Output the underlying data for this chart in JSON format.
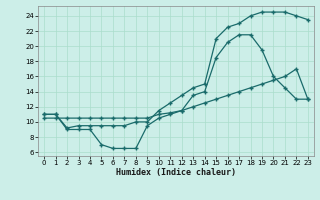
{
  "xlabel": "Humidex (Indice chaleur)",
  "bg_color": "#cceee8",
  "grid_color": "#aaddcc",
  "line_color": "#1a6b6b",
  "x_ticks": [
    0,
    1,
    2,
    3,
    4,
    5,
    6,
    7,
    8,
    9,
    10,
    11,
    12,
    13,
    14,
    15,
    16,
    17,
    18,
    19,
    20,
    21,
    22,
    23
  ],
  "y_ticks": [
    6,
    8,
    10,
    12,
    14,
    16,
    18,
    20,
    22,
    24
  ],
  "xlim": [
    -0.5,
    23.5
  ],
  "ylim": [
    5.5,
    25.3
  ],
  "line1_x": [
    0,
    1,
    2,
    3,
    4,
    5,
    6,
    7,
    8,
    9,
    10,
    11,
    12,
    13,
    14,
    15,
    16,
    17,
    18,
    19,
    20,
    21,
    22,
    23
  ],
  "line1_y": [
    11,
    11,
    9,
    9,
    9,
    7,
    6.5,
    6.5,
    6.5,
    9.5,
    10.5,
    11,
    11.5,
    13.5,
    14,
    18.5,
    20.5,
    21.5,
    21.5,
    19.5,
    16,
    14.5,
    13,
    13
  ],
  "line2_x": [
    0,
    1,
    2,
    3,
    4,
    5,
    6,
    7,
    8,
    9,
    10,
    11,
    12,
    13,
    14,
    15,
    16,
    17,
    18,
    19,
    20,
    21,
    22,
    23
  ],
  "line2_y": [
    11,
    11,
    9.2,
    9.5,
    9.5,
    9.5,
    9.5,
    9.5,
    10,
    10,
    11.5,
    12.5,
    13.5,
    14.5,
    15,
    21,
    22.5,
    23,
    24,
    24.5,
    24.5,
    24.5,
    24,
    23.5
  ],
  "line3_x": [
    0,
    1,
    2,
    3,
    4,
    5,
    6,
    7,
    8,
    9,
    10,
    11,
    12,
    13,
    14,
    15,
    16,
    17,
    18,
    19,
    20,
    21,
    22,
    23
  ],
  "line3_y": [
    10.5,
    10.5,
    10.5,
    10.5,
    10.5,
    10.5,
    10.5,
    10.5,
    10.5,
    10.5,
    11,
    11.2,
    11.5,
    12,
    12.5,
    13,
    13.5,
    14,
    14.5,
    15,
    15.5,
    16,
    17,
    13
  ]
}
